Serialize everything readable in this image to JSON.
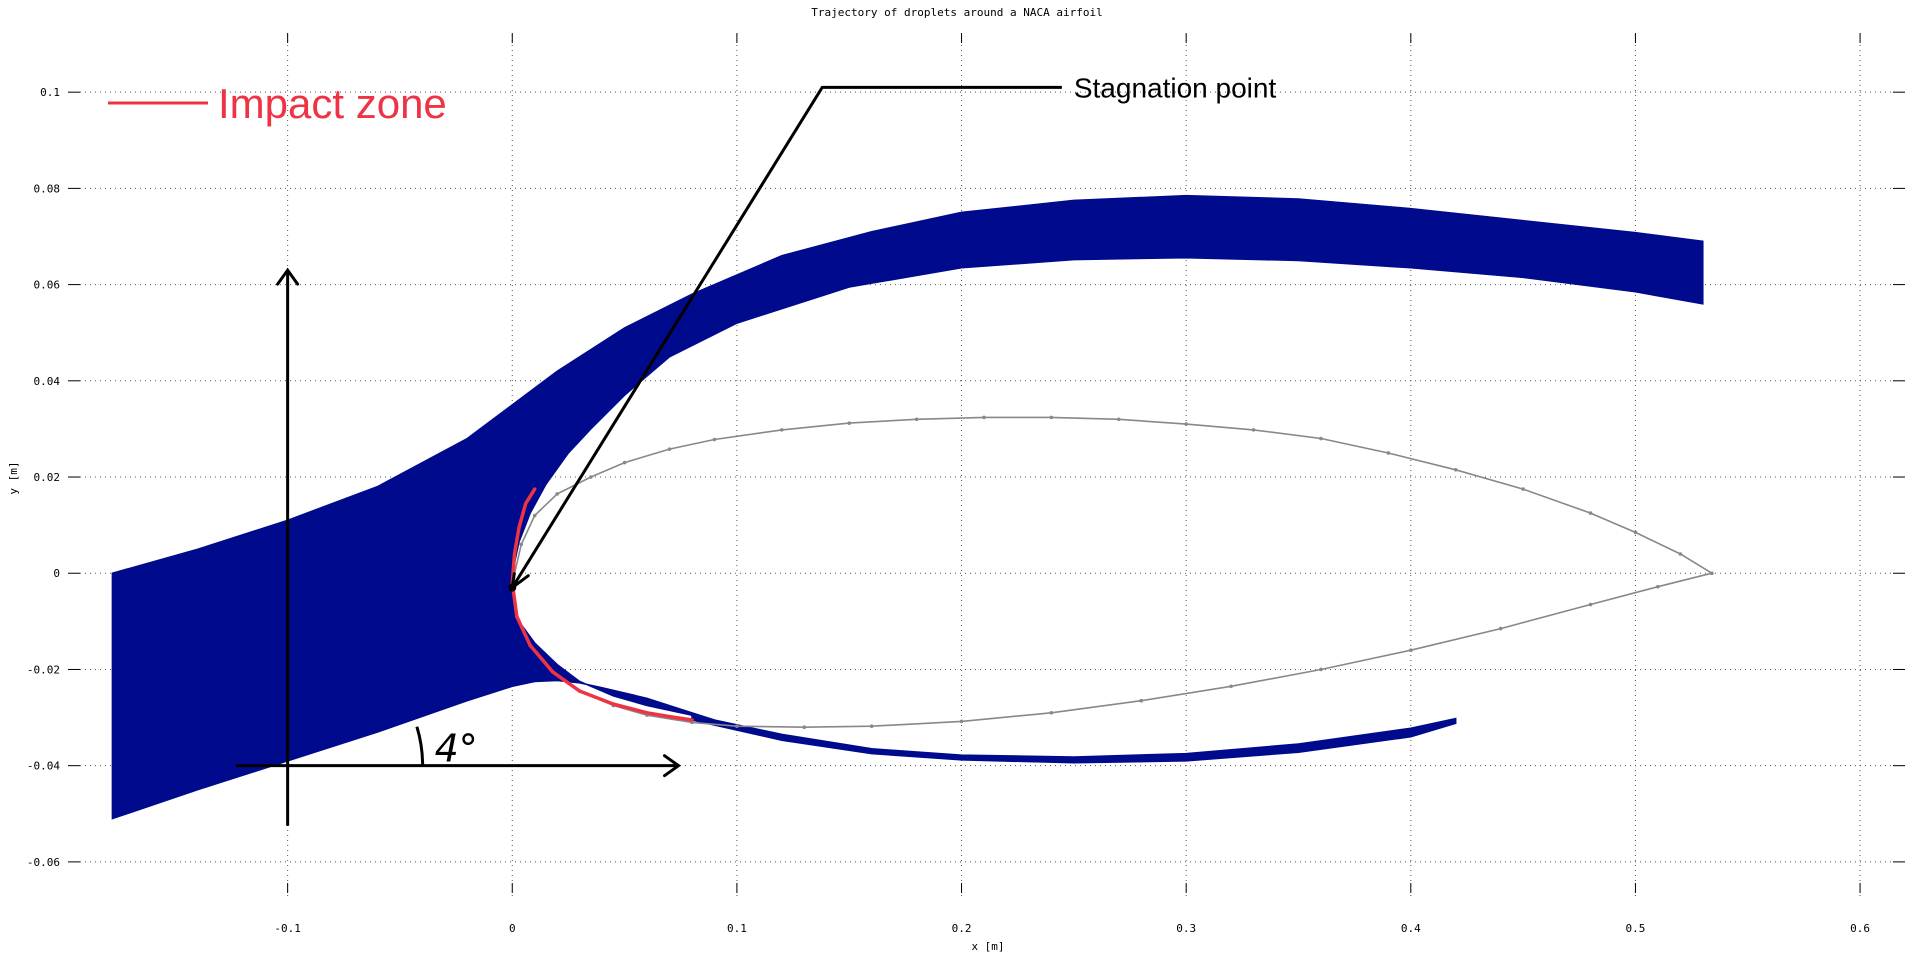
{
  "chart_data": {
    "type": "line",
    "title": "Trajectory of droplets around a NACA airfoil",
    "xlabel": "x [m]",
    "ylabel": "y [m]",
    "xlim": [
      -0.2,
      0.62
    ],
    "ylim": [
      -0.07,
      0.115
    ],
    "grid": true,
    "x_ticks": [
      -0.1,
      0,
      0.1,
      0.2,
      0.3,
      0.4,
      0.5,
      0.6
    ],
    "y_ticks": [
      -0.06,
      -0.04,
      -0.02,
      0,
      0.02,
      0.04,
      0.06,
      0.08,
      0.1
    ],
    "colors": {
      "droplets": "#000a8c",
      "impact": "#ee3344",
      "airfoil": "#888888",
      "annotation": "#000000"
    },
    "airfoil": {
      "x": [
        0.534,
        0.52,
        0.5,
        0.48,
        0.45,
        0.42,
        0.39,
        0.36,
        0.33,
        0.3,
        0.27,
        0.24,
        0.21,
        0.18,
        0.15,
        0.12,
        0.09,
        0.07,
        0.05,
        0.035,
        0.02,
        0.01,
        0.004,
        0.0,
        0.002,
        0.008,
        0.018,
        0.03,
        0.045,
        0.06,
        0.08,
        0.1,
        0.13,
        0.16,
        0.2,
        0.24,
        0.28,
        0.32,
        0.36,
        0.4,
        0.44,
        0.48,
        0.51,
        0.534
      ],
      "y": [
        0.0,
        0.004,
        0.0085,
        0.0125,
        0.0175,
        0.0215,
        0.025,
        0.028,
        0.0298,
        0.031,
        0.032,
        0.0324,
        0.0324,
        0.032,
        0.0312,
        0.0298,
        0.0278,
        0.0258,
        0.023,
        0.02,
        0.0165,
        0.012,
        0.006,
        -0.002,
        -0.009,
        -0.015,
        -0.0205,
        -0.0245,
        -0.0275,
        -0.0295,
        -0.031,
        -0.0318,
        -0.032,
        -0.0318,
        -0.0308,
        -0.029,
        -0.0265,
        -0.0235,
        -0.02,
        -0.016,
        -0.0115,
        -0.0065,
        -0.0028,
        0.0
      ]
    },
    "droplet_band": {
      "upper": {
        "x": [
          -0.178,
          -0.14,
          -0.1,
          -0.06,
          -0.02,
          0.0,
          0.02,
          0.05,
          0.08,
          0.12,
          0.16,
          0.2,
          0.25,
          0.3,
          0.35,
          0.4,
          0.45,
          0.5,
          0.53
        ],
        "y": [
          0.0,
          0.005,
          0.011,
          0.018,
          0.028,
          0.035,
          0.042,
          0.051,
          0.058,
          0.066,
          0.071,
          0.075,
          0.0775,
          0.0785,
          0.0778,
          0.0758,
          0.0733,
          0.0708,
          0.069
        ]
      },
      "lower_main": {
        "x": [
          -0.178,
          -0.14,
          -0.1,
          -0.06,
          -0.02,
          0.0,
          0.01,
          0.02,
          0.03,
          0.04,
          0.06,
          0.08
        ],
        "y": [
          -0.051,
          -0.045,
          -0.039,
          -0.033,
          -0.0265,
          -0.0235,
          -0.0225,
          -0.0223,
          -0.0228,
          -0.0238,
          -0.026,
          -0.029
        ]
      },
      "inner_top": {
        "x": [
          0.53,
          0.5,
          0.45,
          0.4,
          0.35,
          0.3,
          0.25,
          0.2,
          0.15,
          0.1,
          0.07,
          0.05,
          0.035,
          0.025,
          0.015,
          0.008,
          0.003,
          0.0
        ],
        "y": [
          0.056,
          0.0585,
          0.0615,
          0.0635,
          0.065,
          0.0656,
          0.0652,
          0.0635,
          0.0595,
          0.052,
          0.045,
          0.037,
          0.03,
          0.025,
          0.0185,
          0.0125,
          0.0065,
          0.0
        ]
      },
      "inner_bottom": {
        "x": [
          0.0,
          0.003,
          0.01,
          0.02,
          0.03,
          0.045,
          0.06,
          0.075,
          0.09
        ],
        "y": [
          -0.005,
          -0.01,
          -0.0145,
          -0.019,
          -0.0225,
          -0.0255,
          -0.0275,
          -0.029,
          -0.0305
        ]
      },
      "lower_tail": {
        "x_top": [
          0.08,
          0.12,
          0.16,
          0.2,
          0.25,
          0.3,
          0.35,
          0.4,
          0.42
        ],
        "y_top": [
          -0.0295,
          -0.0335,
          -0.0365,
          -0.0378,
          -0.0382,
          -0.0375,
          -0.0355,
          -0.0322,
          -0.0302
        ],
        "x_bottom": [
          0.42,
          0.4,
          0.35,
          0.3,
          0.25,
          0.2,
          0.16,
          0.12,
          0.08
        ],
        "y_bottom": [
          -0.0312,
          -0.034,
          -0.0372,
          -0.039,
          -0.0394,
          -0.0388,
          -0.0375,
          -0.0347,
          -0.0305
        ]
      }
    },
    "impact_zone": {
      "x": [
        0.0,
        0.001,
        0.003,
        0.006,
        0.01,
        0.0,
        0.002,
        0.008,
        0.018,
        0.03,
        0.045,
        0.06,
        0.07,
        0.08
      ],
      "y": [
        -0.002,
        0.004,
        0.0095,
        0.0145,
        0.0175,
        -0.002,
        -0.009,
        -0.015,
        -0.0205,
        -0.0245,
        -0.0272,
        -0.029,
        -0.0298,
        -0.0305
      ]
    },
    "legend": {
      "label": "Impact zone",
      "placement": "top-left"
    },
    "annotations": {
      "stagnation_label": "Stagnation point",
      "stagnation_point": [
        0.0,
        -0.003
      ],
      "stagnation_elbow": [
        0.138,
        0.101
      ],
      "stagnation_text_at": [
        0.25,
        0.101
      ],
      "angle_label": "4°",
      "reference_origin": [
        -0.1,
        -0.04
      ],
      "vertical_arrow_top": 0.063,
      "vertical_arrow_bottom": -0.0525,
      "horizontal_arrow_left": -0.123,
      "horizontal_arrow_right": 0.074
    }
  }
}
